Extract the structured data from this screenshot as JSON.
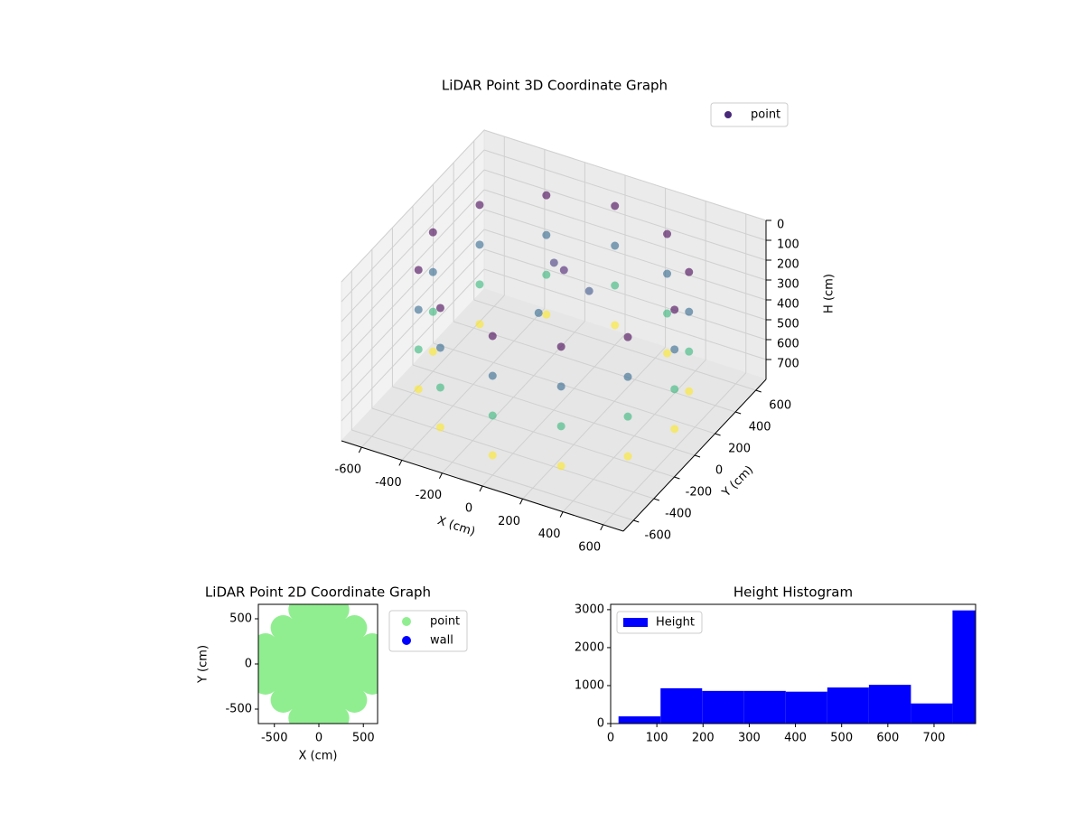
{
  "chart_data": [
    {
      "type": "scatter3d",
      "title": "LiDAR Point 3D Coordinate Graph",
      "xlabel": "X (cm)",
      "ylabel": "Y (cm)",
      "zlabel": "H (cm)",
      "xlim": [
        -700,
        700
      ],
      "ylim": [
        -700,
        700
      ],
      "zlim": [
        0,
        800
      ],
      "z_inverted": true,
      "xticks": [
        -600,
        -400,
        -200,
        0,
        200,
        400,
        600
      ],
      "yticks": [
        -600,
        -400,
        -200,
        0,
        200,
        400,
        600
      ],
      "zticks": [
        0,
        100,
        200,
        300,
        400,
        500,
        600,
        700
      ],
      "colormap": "viridis",
      "legend": "upper right",
      "grid": true,
      "series": [
        {
          "name": "point",
          "color": "#482878",
          "x": [
            600,
            600,
            600,
            600,
            520,
            520,
            520,
            520,
            300,
            300,
            300,
            300,
            0,
            0,
            0,
            0,
            -300,
            -300,
            -300,
            -300,
            -520,
            -520,
            -520,
            -520,
            -600,
            -600,
            -600,
            -600,
            -520,
            -520,
            -520,
            -520,
            -300,
            -300,
            -300,
            -300,
            0,
            0,
            0,
            0,
            300,
            300,
            300,
            300,
            520,
            520,
            520,
            520,
            0,
            -100,
            100,
            -50
          ],
          "y": [
            0,
            0,
            0,
            0,
            300,
            300,
            300,
            300,
            520,
            520,
            520,
            520,
            600,
            600,
            600,
            600,
            520,
            520,
            520,
            520,
            300,
            300,
            300,
            300,
            0,
            0,
            0,
            0,
            -300,
            -300,
            -300,
            -300,
            -520,
            -520,
            -520,
            -520,
            -600,
            -600,
            -600,
            -600,
            -520,
            -520,
            -520,
            -520,
            -300,
            -300,
            -300,
            -300,
            100,
            200,
            150,
            -50
          ],
          "z": [
            100,
            300,
            500,
            700,
            100,
            300,
            500,
            700,
            100,
            300,
            500,
            700,
            100,
            300,
            500,
            700,
            100,
            300,
            500,
            700,
            100,
            300,
            500,
            700,
            100,
            300,
            500,
            700,
            100,
            300,
            500,
            700,
            100,
            300,
            500,
            700,
            100,
            300,
            500,
            700,
            100,
            300,
            500,
            700,
            100,
            300,
            500,
            700,
            150,
            200,
            250,
            300
          ]
        }
      ]
    },
    {
      "type": "scatter",
      "title": "LiDAR Point 2D Coordinate Graph",
      "xlabel": "X (cm)",
      "ylabel": "Y (cm)",
      "xlim": [
        -680,
        660
      ],
      "ylim": [
        -660,
        660
      ],
      "xticks": [
        -500,
        0,
        500
      ],
      "yticks": [
        -500,
        0,
        500
      ],
      "legend": "outside right",
      "series": [
        {
          "name": "point",
          "color": "#90ee90",
          "x": [
            -200,
            0,
            200,
            -400,
            -200,
            0,
            200,
            400,
            -600,
            -400,
            -200,
            0,
            200,
            400,
            600,
            -600,
            -400,
            -200,
            0,
            200,
            400,
            600,
            -600,
            -400,
            -200,
            0,
            200,
            400,
            600,
            -400,
            -200,
            0,
            200,
            400,
            -200,
            0,
            200
          ],
          "y": [
            600,
            600,
            600,
            400,
            400,
            400,
            400,
            400,
            200,
            200,
            200,
            200,
            200,
            200,
            200,
            0,
            0,
            0,
            0,
            0,
            0,
            0,
            -200,
            -200,
            -200,
            -200,
            -200,
            -200,
            -200,
            -400,
            -400,
            -400,
            -400,
            -400,
            -600,
            -600,
            -600
          ]
        },
        {
          "name": "wall",
          "color": "#0000ff",
          "x": [],
          "y": []
        }
      ]
    },
    {
      "type": "histogram",
      "title": "Height Histogram",
      "legend": "upper left",
      "bins": [
        17,
        108,
        198,
        288,
        379,
        469,
        559,
        650,
        740,
        790
      ],
      "series": [
        {
          "name": "Height",
          "color": "#0000ff",
          "values": [
            190,
            930,
            860,
            860,
            840,
            950,
            1020,
            530,
            2980
          ]
        }
      ],
      "xlim": [
        0,
        790
      ],
      "ylim": [
        0,
        3140
      ],
      "xticks": [
        0,
        100,
        200,
        300,
        400,
        500,
        600,
        700
      ],
      "yticks": [
        0,
        1000,
        2000,
        3000
      ]
    }
  ]
}
